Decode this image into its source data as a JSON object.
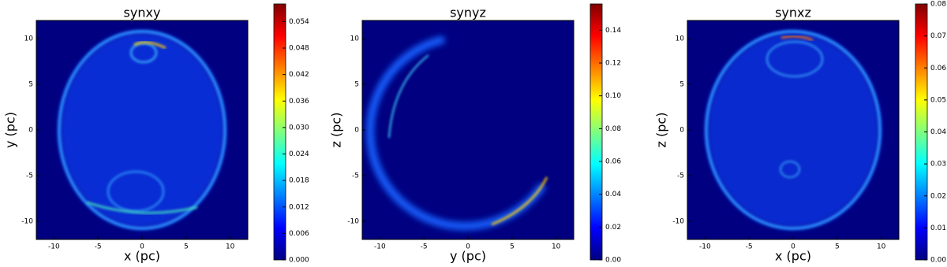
{
  "chart_data": [
    {
      "type": "heatmap",
      "title": "synxy",
      "x_label": "x (pc)",
      "y_label": "y (pc)",
      "xlim": [
        -12,
        12
      ],
      "ylim": [
        -12,
        12
      ],
      "xticks": [
        -10,
        -5,
        0,
        5,
        10
      ],
      "yticks": [
        -10,
        -5,
        0,
        5,
        10
      ],
      "colormap": "jet",
      "clim": [
        0,
        0.058
      ],
      "cticks": [
        {
          "value": 0,
          "label": "0.000"
        },
        {
          "value": 0.006,
          "label": "0.006"
        },
        {
          "value": 0.012,
          "label": "0.012"
        },
        {
          "value": 0.018,
          "label": "0.018"
        },
        {
          "value": 0.024,
          "label": "0.024"
        },
        {
          "value": 0.03,
          "label": "0.030"
        },
        {
          "value": 0.036,
          "label": "0.036"
        },
        {
          "value": 0.042,
          "label": "0.042"
        },
        {
          "value": 0.048,
          "label": "0.048"
        },
        {
          "value": 0.054,
          "label": "0.054"
        }
      ]
    },
    {
      "type": "heatmap",
      "title": "synyz",
      "x_label": "y (pc)",
      "y_label": "z (pc)",
      "xlim": [
        -12,
        12
      ],
      "ylim": [
        -12,
        12
      ],
      "xticks": [
        -10,
        -5,
        0,
        5,
        10
      ],
      "yticks": [
        -10,
        -5,
        0,
        5,
        10
      ],
      "colormap": "jet",
      "clim": [
        0,
        0.156
      ],
      "cticks": [
        {
          "value": 0,
          "label": "0.00"
        },
        {
          "value": 0.02,
          "label": "0.02"
        },
        {
          "value": 0.04,
          "label": "0.04"
        },
        {
          "value": 0.06,
          "label": "0.06"
        },
        {
          "value": 0.08,
          "label": "0.08"
        },
        {
          "value": 0.1,
          "label": "0.10"
        },
        {
          "value": 0.12,
          "label": "0.12"
        },
        {
          "value": 0.14,
          "label": "0.14"
        }
      ]
    },
    {
      "type": "heatmap",
      "title": "synxz",
      "x_label": "x (pc)",
      "y_label": "z (pc)",
      "xlim": [
        -12,
        12
      ],
      "ylim": [
        -12,
        12
      ],
      "xticks": [
        -10,
        -5,
        0,
        5,
        10
      ],
      "yticks": [
        -10,
        -5,
        0,
        5,
        10
      ],
      "colormap": "jet",
      "clim": [
        0,
        0.08
      ],
      "cticks": [
        {
          "value": 0,
          "label": "0.00"
        },
        {
          "value": 0.01,
          "label": "0.01"
        },
        {
          "value": 0.02,
          "label": "0.02"
        },
        {
          "value": 0.03,
          "label": "0.03"
        },
        {
          "value": 0.04,
          "label": "0.04"
        },
        {
          "value": 0.05,
          "label": "0.05"
        },
        {
          "value": 0.06,
          "label": "0.06"
        },
        {
          "value": 0.07,
          "label": "0.07"
        },
        {
          "value": 0.08,
          "label": "0.08"
        }
      ]
    }
  ]
}
